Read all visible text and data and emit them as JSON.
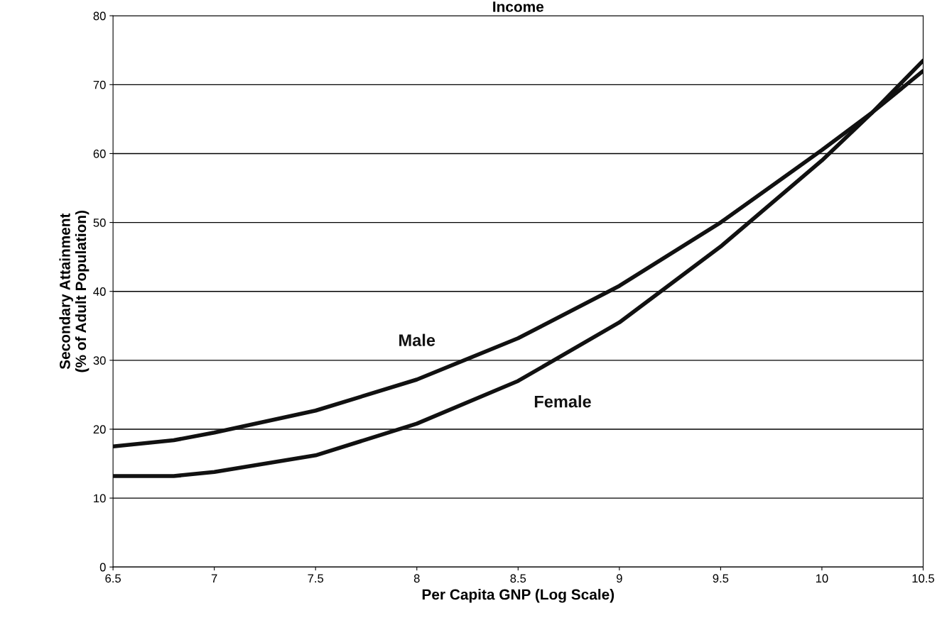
{
  "chart_data": {
    "type": "line",
    "title": "Income",
    "xlabel": "Per Capita GNP (Log Scale)",
    "ylabel": "Secondary Attainment\n(% of Adult Population)",
    "x": [
      6.5,
      6.8,
      7.0,
      7.5,
      8.0,
      8.5,
      9.0,
      9.5,
      10.0,
      10.25,
      10.5
    ],
    "series": [
      {
        "name": "Male",
        "color": "#111111",
        "values": [
          17.5,
          18.4,
          19.5,
          22.7,
          27.2,
          33.2,
          40.8,
          50,
          60.5,
          66,
          72
        ]
      },
      {
        "name": "Female",
        "color": "#111111",
        "values": [
          13.2,
          13.2,
          13.8,
          16.2,
          20.8,
          27,
          35.5,
          46.5,
          59,
          66,
          73.5
        ]
      }
    ],
    "xlim": [
      6.5,
      10.5
    ],
    "xticks": [
      6.5,
      7,
      7.5,
      8,
      8.5,
      9,
      9.5,
      10,
      10.5
    ],
    "ylim": [
      0,
      80
    ],
    "yticks": [
      0,
      10,
      20,
      30,
      40,
      50,
      60,
      70,
      80
    ],
    "grid": "y",
    "legend": false,
    "marker": "none",
    "line_style": "solid"
  }
}
